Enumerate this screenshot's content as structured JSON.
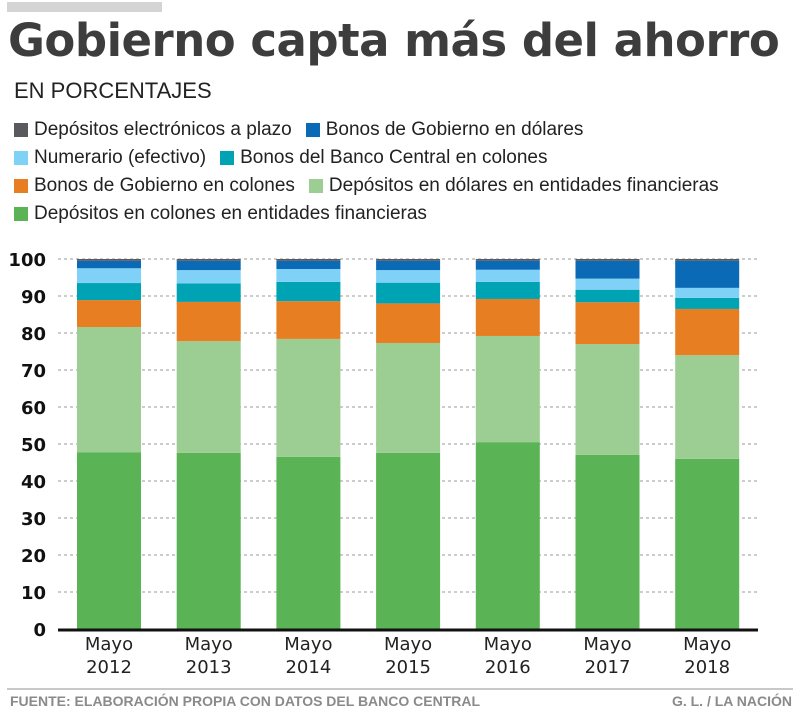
{
  "header": {
    "title": "Gobierno capta más del ahorro",
    "subtitle": "EN PORCENTAJES"
  },
  "footer": {
    "source": "FUENTE: ELABORACIÓN PROPIA CON DATOS DEL BANCO CENTRAL",
    "credit": "G. L. / LA NACIÓN"
  },
  "legend_rows": [
    [
      0,
      1
    ],
    [
      2,
      3
    ],
    [
      4,
      5
    ],
    [
      6
    ]
  ],
  "chart_data": {
    "type": "bar",
    "stacked": true,
    "title": "Gobierno capta más del ahorro",
    "subtitle": "EN PORCENTAJES",
    "xlabel": "",
    "ylabel": "",
    "ylim": [
      0,
      100
    ],
    "yticks": [
      0,
      10,
      20,
      30,
      40,
      50,
      60,
      70,
      80,
      90,
      100
    ],
    "grid": true,
    "legend_position": "top",
    "categories": [
      [
        "Mayo",
        "2012"
      ],
      [
        "Mayo",
        "2013"
      ],
      [
        "Mayo",
        "2014"
      ],
      [
        "Mayo",
        "2015"
      ],
      [
        "Mayo",
        "2016"
      ],
      [
        "Mayo",
        "2017"
      ],
      [
        "Mayo",
        "2018"
      ]
    ],
    "series": [
      {
        "name": "Depósitos electrónicos a plazo",
        "color": "#5a5a5e",
        "values": [
          0.5,
          0.5,
          0.5,
          0.5,
          0.5,
          0.5,
          0.5
        ]
      },
      {
        "name": "Bonos de Gobierno en dólares",
        "color": "#0a6ab6",
        "values": [
          2.0,
          2.5,
          2.2,
          2.5,
          2.4,
          4.8,
          7.3
        ]
      },
      {
        "name": "Numerario (efectivo)",
        "color": "#7fd1f7",
        "values": [
          4.0,
          3.6,
          3.5,
          3.4,
          3.3,
          3.0,
          2.7
        ]
      },
      {
        "name": "Bonos del Banco Central en colones",
        "color": "#00a3b4",
        "values": [
          4.6,
          5.0,
          5.2,
          5.6,
          4.6,
          3.4,
          3.0
        ]
      },
      {
        "name": "Bonos de Gobierno en colones",
        "color": "#e87e22",
        "values": [
          7.3,
          10.6,
          10.2,
          10.7,
          10.0,
          11.3,
          12.5
        ]
      },
      {
        "name": "Depósitos en dólares en entidades financieras",
        "color": "#9ccd93",
        "values": [
          33.9,
          30.2,
          31.9,
          29.7,
          28.7,
          29.9,
          28.0
        ]
      },
      {
        "name": "Depósitos en colones en entidades financieras",
        "color": "#5ab354",
        "values": [
          47.7,
          47.6,
          46.5,
          47.6,
          50.5,
          47.1,
          46.0
        ]
      }
    ],
    "stack_order_bottom_to_top": [
      6,
      5,
      4,
      3,
      2,
      1,
      0
    ]
  }
}
